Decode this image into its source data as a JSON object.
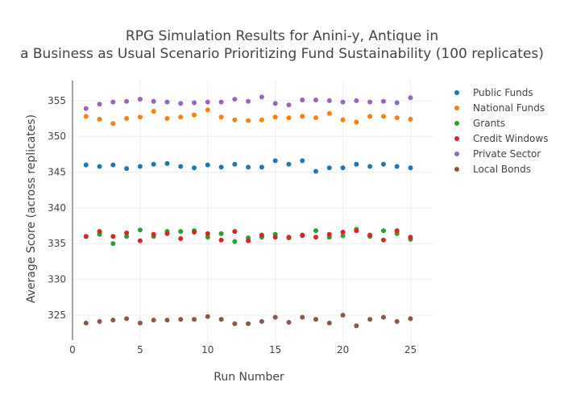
{
  "chart_data": {
    "type": "scatter",
    "title_lines": [
      "RPG Simulation Results for Anini-y, Antique in",
      "a Business as Usual Scenario Prioritizing Fund Sustainability (100 replicates)"
    ],
    "xlabel": "Run Number",
    "ylabel": "Average Score (across replicates)",
    "xlim": [
      0,
      26.7
    ],
    "ylim": [
      321.5,
      357.8
    ],
    "x_ticks": [
      0,
      5,
      10,
      15,
      20,
      25
    ],
    "y_ticks": [
      325,
      330,
      335,
      340,
      345,
      350,
      355
    ],
    "grid": true,
    "legend_position": "top-right",
    "x": [
      1,
      2,
      3,
      4,
      5,
      6,
      7,
      8,
      9,
      10,
      11,
      12,
      13,
      14,
      15,
      16,
      17,
      18,
      19,
      20,
      21,
      22,
      23,
      24,
      25
    ],
    "series": [
      {
        "name": "Public Funds",
        "color": "#1f77b4",
        "values": [
          346.0,
          345.8,
          346.0,
          345.5,
          345.8,
          346.1,
          346.2,
          345.8,
          345.6,
          346.0,
          345.7,
          346.1,
          345.7,
          345.7,
          346.6,
          346.1,
          346.6,
          345.1,
          345.6,
          345.6,
          346.1,
          345.8,
          346.1,
          345.8,
          345.6
        ]
      },
      {
        "name": "National Funds",
        "color": "#ff7f0e",
        "values": [
          352.8,
          352.4,
          351.8,
          352.5,
          352.7,
          353.5,
          352.5,
          352.7,
          353.0,
          353.7,
          352.7,
          352.3,
          352.2,
          352.3,
          352.7,
          352.6,
          352.8,
          352.6,
          353.2,
          352.3,
          352.0,
          352.8,
          352.8,
          352.6,
          352.4
        ]
      },
      {
        "name": "Grants",
        "color": "#2ca02c",
        "values": [
          336.0,
          336.3,
          335.0,
          336.0,
          336.9,
          336.0,
          336.7,
          336.7,
          336.8,
          335.9,
          336.4,
          335.3,
          335.8,
          335.9,
          336.3,
          335.8,
          336.1,
          336.8,
          335.9,
          336.1,
          337.0,
          336.0,
          336.8,
          336.4,
          335.6
        ]
      },
      {
        "name": "Credit Windows",
        "color": "#d62728",
        "values": [
          336.0,
          336.7,
          336.0,
          336.5,
          335.4,
          336.3,
          336.4,
          335.7,
          336.6,
          336.4,
          335.5,
          336.7,
          335.4,
          336.2,
          335.9,
          335.9,
          336.2,
          335.9,
          336.3,
          336.6,
          336.8,
          336.2,
          335.5,
          336.8,
          335.9
        ]
      },
      {
        "name": "Private Sector",
        "color": "#9467bd",
        "values": [
          353.9,
          354.5,
          354.8,
          354.9,
          355.2,
          354.9,
          354.8,
          354.6,
          354.7,
          354.8,
          354.8,
          355.2,
          354.9,
          355.5,
          354.6,
          354.4,
          355.1,
          355.1,
          355.0,
          354.8,
          355.0,
          354.8,
          354.9,
          354.7,
          355.4
        ]
      },
      {
        "name": "Local Bonds",
        "color": "#8c564b",
        "values": [
          323.9,
          324.1,
          324.3,
          324.5,
          323.9,
          324.3,
          324.3,
          324.4,
          324.4,
          324.8,
          324.4,
          323.8,
          323.8,
          324.1,
          324.7,
          324.0,
          324.7,
          324.4,
          323.9,
          325.0,
          323.5,
          324.4,
          324.7,
          324.1,
          324.5
        ]
      }
    ]
  }
}
